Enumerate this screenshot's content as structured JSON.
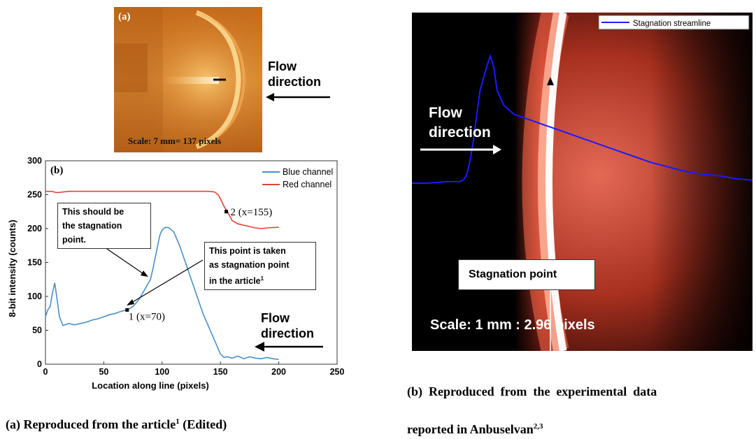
{
  "panel_a": {
    "label": "(a)",
    "scale": "Scale: 7 mm= 137 pixels",
    "flow_direction": [
      "Flow",
      "direction"
    ]
  },
  "panel_b_chart": {
    "label": "(b)",
    "callout_should": [
      "This should be",
      "the stagnation",
      "point."
    ],
    "callout_taken": [
      "This point is taken",
      "as stagnation point",
      "in the article"
    ],
    "callout_taken_sup": "1",
    "point1_label": "1 (x=70)",
    "point2_label": "2 (x=155)",
    "flow_direction": [
      "Flow",
      "direction"
    ]
  },
  "panel_right": {
    "legend": "Stagnation streamline",
    "flow_direction": [
      "Flow",
      "direction"
    ],
    "stagnation_label": "Stagnation point",
    "scale": "Scale: 1 mm : 2.96 pixels"
  },
  "captions": {
    "left_pre": "(a) Reproduced from the article",
    "left_sup": "1",
    "left_post": " (Edited)",
    "right_line1": "(b)  Reproduced  from  the  experimental  data",
    "right_line2_pre": "reported in Anbuselvan",
    "right_line2_sup": "2,3"
  },
  "chart_data": {
    "type": "line",
    "xlabel": "Location along line (pixels)",
    "ylabel": "8-bit intensity (counts)",
    "xlim": [
      0,
      250
    ],
    "ylim": [
      0,
      300
    ],
    "xticks": [
      0,
      50,
      100,
      150,
      200,
      250
    ],
    "yticks": [
      0,
      50,
      100,
      150,
      200,
      250,
      300
    ],
    "legend_position": "top-right",
    "series": [
      {
        "name": "Blue channel",
        "color": "#4a90c8",
        "x": [
          0,
          2,
          4,
          6,
          8,
          10,
          12,
          15,
          20,
          25,
          30,
          35,
          40,
          45,
          50,
          55,
          60,
          65,
          70,
          75,
          80,
          85,
          90,
          92,
          95,
          98,
          100,
          103,
          106,
          110,
          115,
          120,
          125,
          130,
          135,
          140,
          145,
          150,
          153,
          156,
          160,
          165,
          170,
          175,
          180,
          185,
          190,
          195,
          200
        ],
        "values": [
          70,
          80,
          85,
          105,
          120,
          95,
          70,
          57,
          60,
          58,
          60,
          62,
          65,
          67,
          70,
          73,
          75,
          78,
          80,
          85,
          95,
          110,
          125,
          140,
          165,
          190,
          198,
          202,
          201,
          195,
          175,
          150,
          125,
          100,
          75,
          55,
          35,
          15,
          10,
          11,
          9,
          12,
          8,
          11,
          9,
          8,
          10,
          8,
          7
        ]
      },
      {
        "name": "Red channel",
        "color": "#e0443a",
        "x": [
          0,
          5,
          10,
          20,
          50,
          100,
          140,
          145,
          148,
          150,
          153,
          156,
          160,
          165,
          170,
          175,
          180,
          185,
          190,
          200
        ],
        "values": [
          255,
          255,
          253,
          255,
          255,
          255,
          255,
          254,
          250,
          244,
          233,
          225,
          212,
          207,
          205,
          203,
          201,
          200,
          201,
          202
        ]
      }
    ],
    "markers": [
      {
        "x": 70,
        "y": 80
      },
      {
        "x": 155,
        "y": 225
      }
    ]
  },
  "streamline_data": {
    "type": "line",
    "series": [
      {
        "name": "Stagnation streamline",
        "color": "#1a1aff",
        "x": [
          0,
          0.05,
          0.1,
          0.14,
          0.15,
          0.16,
          0.17,
          0.18,
          0.19,
          0.2,
          0.21,
          0.22,
          0.23,
          0.24,
          0.25,
          0.27,
          0.3,
          0.35,
          0.4,
          0.45,
          0.5,
          0.55,
          0.6,
          0.65,
          0.7,
          0.75,
          0.8,
          0.85,
          0.9,
          0.95,
          1.0
        ],
        "values": [
          0.0,
          0.0,
          0.01,
          0.01,
          0.02,
          0.05,
          0.14,
          0.28,
          0.45,
          0.62,
          0.7,
          0.78,
          0.85,
          0.78,
          0.62,
          0.52,
          0.46,
          0.42,
          0.38,
          0.34,
          0.3,
          0.26,
          0.22,
          0.18,
          0.14,
          0.11,
          0.08,
          0.06,
          0.05,
          0.03,
          0.02
        ]
      }
    ]
  }
}
